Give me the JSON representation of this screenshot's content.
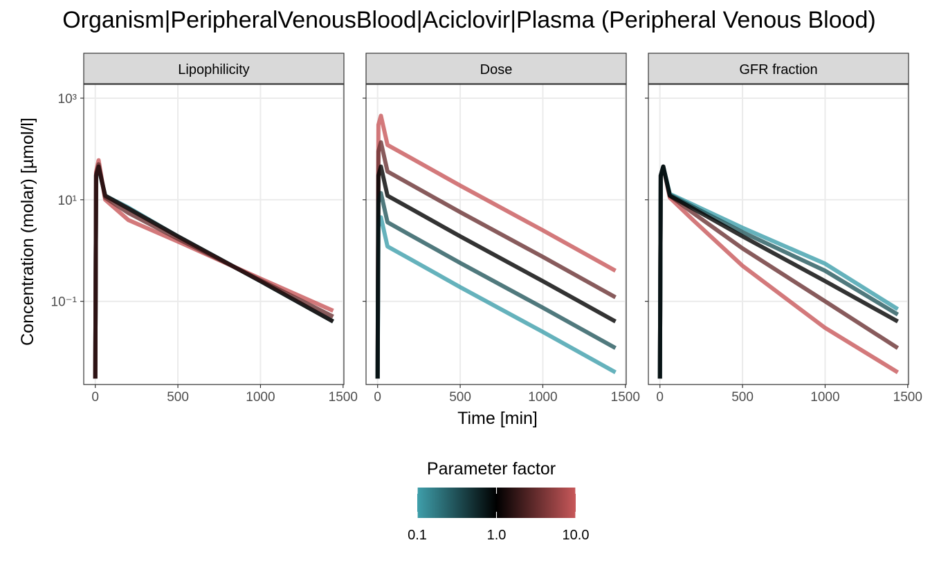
{
  "chart_data": {
    "type": "line",
    "title": "Organism|PeripheralVenousBlood|Aciclovir|Plasma (Peripheral Venous Blood)",
    "x_label": "Time [min]",
    "y_label": "Concentration (molar) [µmol/l]",
    "y_log": true,
    "grid": true,
    "xlim": [
      -70,
      1505
    ],
    "xticks": [
      0,
      500,
      1000,
      1500
    ],
    "ylim": [
      0.0023,
      1870
    ],
    "yticks": [
      {
        "value": 1000,
        "label": "10³"
      },
      {
        "value": 10,
        "label": "10¹"
      },
      {
        "value": 0.1,
        "label": "10⁻¹"
      }
    ],
    "x": [
      0,
      5,
      20,
      60,
      200,
      500,
      1000,
      1440
    ],
    "facets": [
      {
        "label": "Lipophilicity",
        "series": [
          {
            "color": "#3f9fab",
            "values": [
              0.003,
              30,
              42,
              12,
              7,
              1.9,
              0.25,
              0.04
            ]
          },
          {
            "color": "#24575d",
            "values": [
              0.003,
              30,
              44,
              12,
              6.8,
              1.9,
              0.25,
              0.04
            ]
          },
          {
            "color": "#c8585a",
            "values": [
              0.003,
              35,
              60,
              10,
              4,
              1.5,
              0.28,
              0.065
            ]
          },
          {
            "color": "#6a3233",
            "values": [
              0.003,
              32,
              50,
              11,
              5.5,
              1.7,
              0.26,
              0.05
            ]
          },
          {
            "color": "#1a0a0a",
            "values": [
              0.003,
              30,
              45,
              12,
              6.7,
              1.9,
              0.25,
              0.04
            ]
          }
        ]
      },
      {
        "label": "Dose",
        "series": [
          {
            "color": "#c8585a",
            "values": [
              0.003,
              300,
              450,
              120,
              67,
              19,
              2.5,
              0.4
            ]
          },
          {
            "color": "#6a3233",
            "values": [
              0.003,
              90,
              135,
              36,
              20,
              5.7,
              0.75,
              0.12
            ]
          },
          {
            "color": "#3f9fab",
            "values": [
              0.003,
              3,
              4.5,
              1.2,
              0.67,
              0.19,
              0.025,
              0.004
            ]
          },
          {
            "color": "#24575d",
            "values": [
              0.003,
              9,
              13.5,
              3.6,
              2,
              0.57,
              0.075,
              0.012
            ]
          },
          {
            "color": "#000000",
            "values": [
              0.003,
              30,
              45,
              12,
              6.7,
              1.9,
              0.25,
              0.04
            ]
          }
        ]
      },
      {
        "label": "GFR fraction",
        "series": [
          {
            "color": "#c8585a",
            "values": [
              0.003,
              30,
              45,
              11,
              4,
              0.5,
              0.03,
              0.004
            ]
          },
          {
            "color": "#6a3233",
            "values": [
              0.003,
              30,
              45,
              12,
              5.5,
              1.1,
              0.1,
              0.012
            ]
          },
          {
            "color": "#3f9fab",
            "values": [
              0.003,
              30,
              45,
              13,
              8,
              2.8,
              0.55,
              0.07
            ]
          },
          {
            "color": "#24575d",
            "values": [
              0.003,
              30,
              45,
              12.5,
              7.3,
              2.3,
              0.4,
              0.055
            ]
          },
          {
            "color": "#000000",
            "values": [
              0.003,
              30,
              45,
              12,
              6.7,
              1.9,
              0.25,
              0.04
            ]
          }
        ]
      }
    ],
    "colorbar": {
      "title": "Parameter factor",
      "lim": [
        0.1,
        10
      ],
      "ticks": [
        0.1,
        {
          "value": 1,
          "label": "1.0"
        },
        {
          "value": 10,
          "label": "10.0"
        }
      ],
      "colors": [
        "#3f9fab",
        "#000000",
        "#c8585a"
      ]
    }
  }
}
